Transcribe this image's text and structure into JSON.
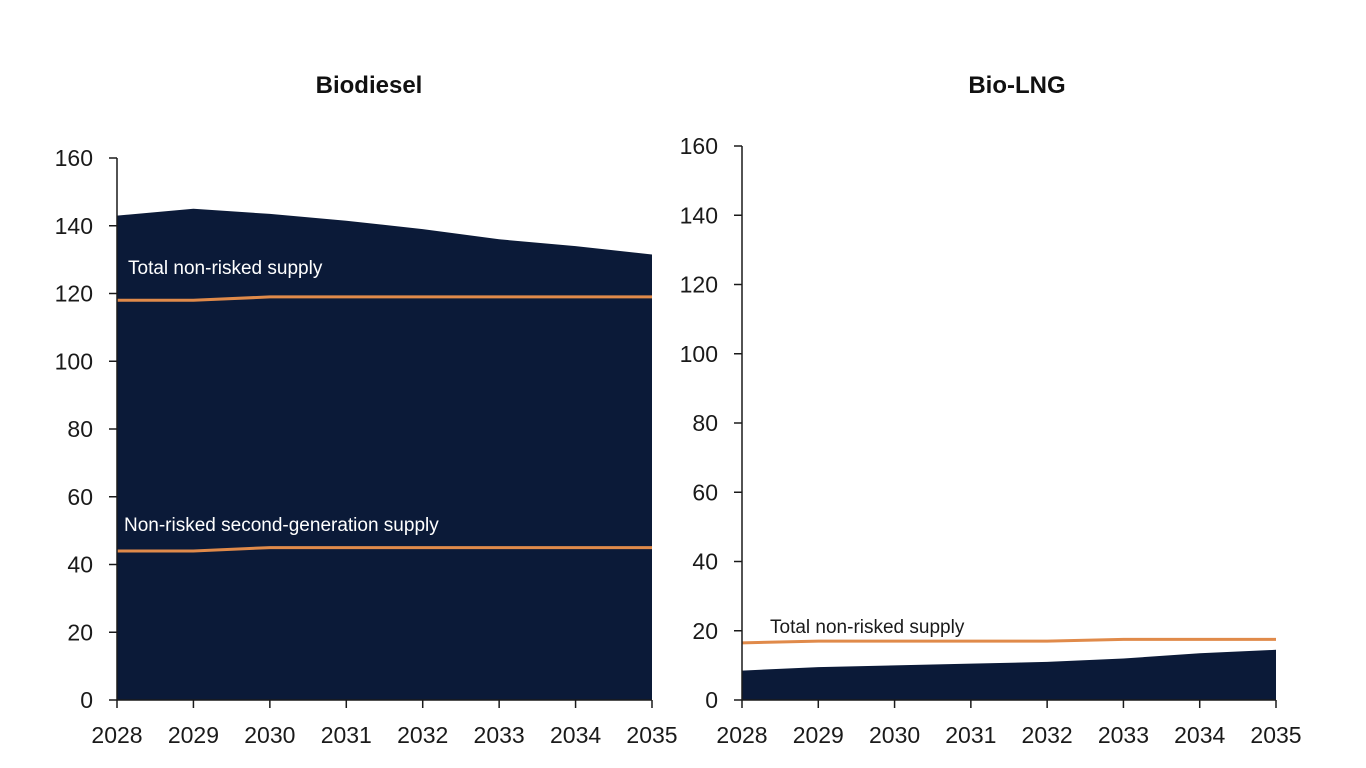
{
  "colors": {
    "area": "#0b1a38",
    "line": "#e08a4a",
    "axis": "#1a1a1a",
    "label_on_dark": "#ffffff",
    "label_on_light": "#1a1a1a"
  },
  "chart_data": [
    {
      "type": "area",
      "title": "Biodiesel",
      "x": [
        "2028",
        "2029",
        "2030",
        "2031",
        "2032",
        "2033",
        "2034",
        "2035"
      ],
      "yticks": [
        "0",
        "20",
        "40",
        "60",
        "80",
        "100",
        "120",
        "140",
        "160"
      ],
      "ylim": [
        0,
        160
      ],
      "grid": false,
      "series": [
        {
          "values": [
            143,
            145,
            143.5,
            141.5,
            139,
            136,
            134,
            131.5
          ]
        }
      ],
      "lines": [
        {
          "label": "Total non-risked supply",
          "values": [
            118,
            118,
            119,
            119,
            119,
            119,
            119,
            119
          ]
        },
        {
          "label": "Non-risked second-generation supply",
          "values": [
            44,
            44,
            45,
            45,
            45,
            45,
            45,
            45
          ]
        }
      ]
    },
    {
      "type": "area",
      "title": "Bio-LNG",
      "x": [
        "2028",
        "2029",
        "2030",
        "2031",
        "2032",
        "2033",
        "2034",
        "2035"
      ],
      "yticks": [
        "0",
        "20",
        "40",
        "60",
        "80",
        "100",
        "120",
        "140",
        "160"
      ],
      "ylim": [
        0,
        160
      ],
      "grid": false,
      "series": [
        {
          "values": [
            8.5,
            9.5,
            10,
            10.5,
            11,
            12,
            13.5,
            14.5
          ]
        }
      ],
      "lines": [
        {
          "label": "Total non-risked supply",
          "values": [
            16.5,
            17,
            17,
            17,
            17,
            17.5,
            17.5,
            17.5
          ]
        }
      ]
    }
  ]
}
